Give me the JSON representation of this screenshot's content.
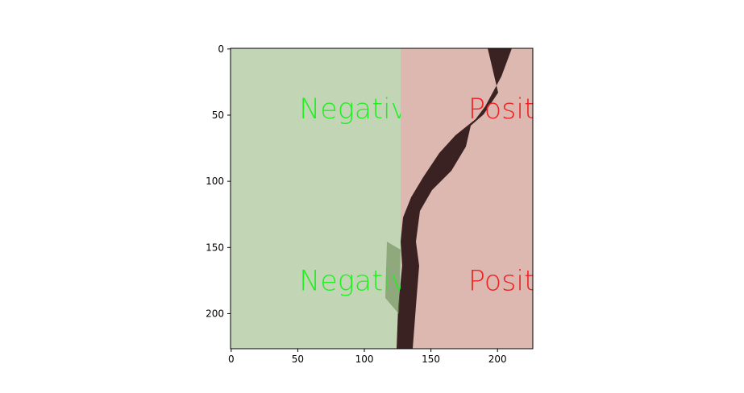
{
  "chart_data": {
    "type": "image",
    "annotations": [
      {
        "text": "Negativ",
        "color": "#22ee22"
      },
      {
        "text": "Posit",
        "color": "#ee2222"
      },
      {
        "text": "Negativ",
        "color": "#22ee22"
      },
      {
        "text": "Posit",
        "color": "#ee2222"
      }
    ],
    "xlim": [
      -0.5,
      226.5
    ],
    "ylim": [
      226.5,
      -0.5
    ],
    "xticks": [
      0,
      50,
      100,
      150,
      200
    ],
    "yticks": [
      0,
      50,
      100,
      150,
      200
    ]
  }
}
